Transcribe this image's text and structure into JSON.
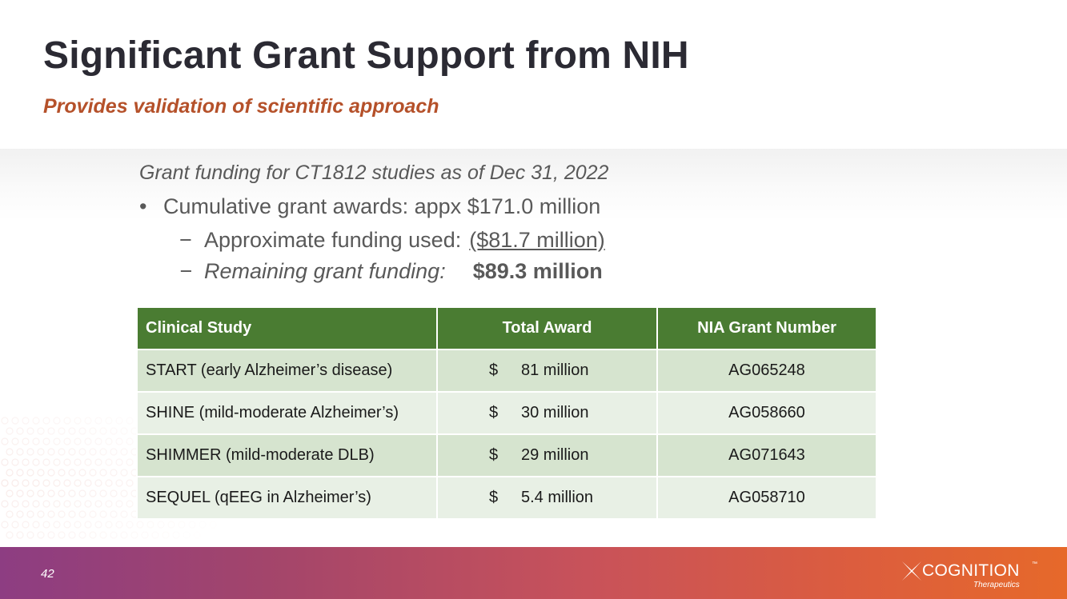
{
  "slide": {
    "title": "Significant Grant Support from NIH",
    "subtitle": "Provides validation of scientific approach",
    "page_number": "42"
  },
  "funding": {
    "heading": "Grant funding for CT1812 studies as of Dec 31, 2022",
    "bullet_marker": "•",
    "dash_marker": "−",
    "cumulative": "Cumulative grant awards: appx $171.0 million",
    "used_label": "Approximate funding used:",
    "used_value": "($81.7 million)",
    "remaining_label": "Remaining grant funding:",
    "remaining_value": "$89.3 million"
  },
  "table": {
    "headers": [
      "Clinical Study",
      "Total Award",
      "NIA Grant Number"
    ],
    "rows": [
      {
        "study": "START (early Alzheimer’s disease)",
        "currency": "$",
        "award": "81 million",
        "grant": "AG065248"
      },
      {
        "study": "SHINE (mild-moderate Alzheimer’s)",
        "currency": "$",
        "award": "30 million",
        "grant": "AG058660"
      },
      {
        "study": "SHIMMER (mild-moderate DLB)",
        "currency": "$",
        "award": "29 million",
        "grant": "AG071643"
      },
      {
        "study": "SEQUEL (qEEG in Alzheimer’s)",
        "currency": "$",
        "award": "5.4 million",
        "grant": "AG058710"
      }
    ]
  },
  "logo": {
    "name": "COGNITION",
    "tm": "™",
    "tagline": "Therapeutics"
  },
  "colors": {
    "title": "#2b2a33",
    "subtitle": "#b5512a",
    "table_header": "#4a7c32",
    "row_dark": "#d6e4cf",
    "row_light": "#e8f0e5",
    "footer_start": "#8d3d82",
    "footer_end": "#e6692a"
  }
}
